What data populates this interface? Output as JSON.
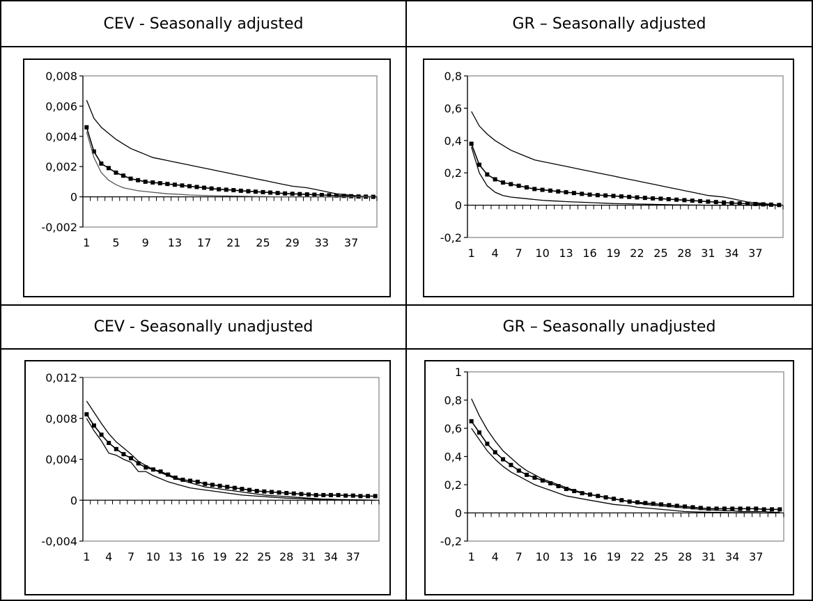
{
  "chart_data": [
    {
      "type": "line",
      "title": "CEV - Seasonally adjusted",
      "ylim": [
        -0.002,
        0.008
      ],
      "yticks": [
        0.008,
        0.006,
        0.004,
        0.002,
        0,
        -0.002
      ],
      "ytick_labels": [
        "0,008",
        "0,006",
        "0,004",
        "0,002",
        "0",
        "-0,002"
      ],
      "xtick_labels": [
        "1",
        "5",
        "9",
        "13",
        "17",
        "21",
        "25",
        "29",
        "33",
        "37"
      ],
      "x": [
        1,
        2,
        3,
        4,
        5,
        6,
        7,
        8,
        9,
        10,
        11,
        12,
        13,
        14,
        15,
        16,
        17,
        18,
        19,
        20,
        21,
        22,
        23,
        24,
        25,
        26,
        27,
        28,
        29,
        30,
        31,
        32,
        33,
        34,
        35,
        36,
        37,
        38,
        39,
        40
      ],
      "series": [
        {
          "marker": "square",
          "values": [
            0.0046,
            0.003,
            0.0022,
            0.0019,
            0.0016,
            0.0014,
            0.0012,
            0.0011,
            0.001,
            0.00095,
            0.0009,
            0.00085,
            0.0008,
            0.00075,
            0.0007,
            0.00065,
            0.0006,
            0.00055,
            0.0005,
            0.00047,
            0.00044,
            0.0004,
            0.00037,
            0.00034,
            0.00031,
            0.00028,
            0.00025,
            0.00022,
            0.0002,
            0.00018,
            0.00016,
            0.00014,
            0.00012,
            0.0001,
            8e-05,
            6e-05,
            4e-05,
            2e-05,
            1e-05,
            0
          ]
        },
        {
          "marker": "none",
          "values": [
            0.0064,
            0.0052,
            0.0046,
            0.0042,
            0.0038,
            0.0035,
            0.0032,
            0.003,
            0.0028,
            0.0026,
            0.0025,
            0.0024,
            0.0023,
            0.0022,
            0.0021,
            0.002,
            0.0019,
            0.0018,
            0.0017,
            0.0016,
            0.0015,
            0.0014,
            0.0013,
            0.0012,
            0.0011,
            0.001,
            0.0009,
            0.0008,
            0.0007,
            0.00065,
            0.0006,
            0.0005,
            0.0004,
            0.0003,
            0.0002,
            0.00015,
            0.0001,
            5e-05,
            2e-05,
            0
          ]
        },
        {
          "marker": "none",
          "values": [
            0.0043,
            0.0026,
            0.0016,
            0.0011,
            0.0008,
            0.0006,
            0.0005,
            0.0004,
            0.00035,
            0.0003,
            0.00025,
            0.0002,
            0.00018,
            0.00015,
            0.00012,
            0.0001,
            9e-05,
            8e-05,
            7e-05,
            6e-05,
            5e-05,
            4e-05,
            3e-05,
            2e-05,
            2e-05,
            1e-05,
            0,
            0,
            0,
            0,
            0,
            0,
            0,
            0,
            0,
            0,
            0,
            0,
            0,
            0
          ]
        }
      ]
    },
    {
      "type": "line",
      "title": "GR – Seasonally adjusted",
      "ylim": [
        -0.2,
        0.8
      ],
      "yticks": [
        0.8,
        0.6,
        0.4,
        0.2,
        0,
        -0.2
      ],
      "ytick_labels": [
        "0,8",
        "0,6",
        "0,4",
        "0,2",
        "0",
        "-0,2"
      ],
      "xtick_labels": [
        "1",
        "4",
        "7",
        "10",
        "13",
        "16",
        "19",
        "22",
        "25",
        "28",
        "31",
        "34",
        "37"
      ],
      "x": [
        1,
        2,
        3,
        4,
        5,
        6,
        7,
        8,
        9,
        10,
        11,
        12,
        13,
        14,
        15,
        16,
        17,
        18,
        19,
        20,
        21,
        22,
        23,
        24,
        25,
        26,
        27,
        28,
        29,
        30,
        31,
        32,
        33,
        34,
        35,
        36,
        37,
        38,
        39,
        40
      ],
      "series": [
        {
          "marker": "square",
          "values": [
            0.38,
            0.25,
            0.19,
            0.16,
            0.14,
            0.13,
            0.12,
            0.11,
            0.1,
            0.095,
            0.09,
            0.085,
            0.08,
            0.075,
            0.07,
            0.065,
            0.062,
            0.06,
            0.057,
            0.054,
            0.051,
            0.048,
            0.045,
            0.042,
            0.04,
            0.037,
            0.034,
            0.031,
            0.028,
            0.025,
            0.022,
            0.019,
            0.016,
            0.013,
            0.011,
            0.009,
            0.007,
            0.005,
            0.003,
            0.001
          ]
        },
        {
          "marker": "none",
          "values": [
            0.58,
            0.49,
            0.44,
            0.4,
            0.37,
            0.34,
            0.32,
            0.3,
            0.28,
            0.27,
            0.26,
            0.25,
            0.24,
            0.23,
            0.22,
            0.21,
            0.2,
            0.19,
            0.18,
            0.17,
            0.16,
            0.15,
            0.14,
            0.13,
            0.12,
            0.11,
            0.1,
            0.09,
            0.08,
            0.07,
            0.06,
            0.055,
            0.05,
            0.04,
            0.03,
            0.02,
            0.015,
            0.01,
            0.005,
            0
          ]
        },
        {
          "marker": "none",
          "values": [
            0.36,
            0.2,
            0.12,
            0.08,
            0.06,
            0.05,
            0.045,
            0.04,
            0.035,
            0.03,
            0.027,
            0.025,
            0.022,
            0.02,
            0.018,
            0.016,
            0.014,
            0.012,
            0.01,
            0.009,
            0.008,
            0.007,
            0.006,
            0.005,
            0.004,
            0.003,
            0.002,
            0.002,
            0.001,
            0.001,
            0,
            0,
            0,
            0,
            0,
            0,
            0,
            0,
            0,
            0
          ]
        }
      ]
    },
    {
      "type": "line",
      "title": "CEV - Seasonally unadjusted",
      "ylim": [
        -0.004,
        0.012
      ],
      "yticks": [
        0.012,
        0.008,
        0.004,
        0,
        -0.004
      ],
      "ytick_labels": [
        "0,012",
        "0,008",
        "0,004",
        "0",
        "-0,004"
      ],
      "xtick_labels": [
        "1",
        "4",
        "7",
        "10",
        "13",
        "16",
        "19",
        "22",
        "25",
        "28",
        "31",
        "34",
        "37"
      ],
      "x": [
        1,
        2,
        3,
        4,
        5,
        6,
        7,
        8,
        9,
        10,
        11,
        12,
        13,
        14,
        15,
        16,
        17,
        18,
        19,
        20,
        21,
        22,
        23,
        24,
        25,
        26,
        27,
        28,
        29,
        30,
        31,
        32,
        33,
        34,
        35,
        36,
        37,
        38,
        39,
        40
      ],
      "series": [
        {
          "marker": "square",
          "values": [
            0.0084,
            0.0073,
            0.0064,
            0.0056,
            0.005,
            0.0045,
            0.0041,
            0.0036,
            0.0032,
            0.003,
            0.0028,
            0.0025,
            0.0022,
            0.002,
            0.0019,
            0.0018,
            0.0016,
            0.0015,
            0.0014,
            0.0013,
            0.0012,
            0.0011,
            0.001,
            0.0009,
            0.00085,
            0.0008,
            0.00075,
            0.0007,
            0.00065,
            0.0006,
            0.00055,
            0.0005,
            0.0005,
            0.0005,
            0.0005,
            0.00045,
            0.00045,
            0.0004,
            0.0004,
            0.0004
          ]
        },
        {
          "marker": "none",
          "values": [
            0.0097,
            0.0086,
            0.0075,
            0.0065,
            0.0057,
            0.0051,
            0.0045,
            0.0038,
            0.0034,
            0.003,
            0.0027,
            0.0024,
            0.0021,
            0.0019,
            0.0017,
            0.0015,
            0.0013,
            0.0012,
            0.0011,
            0.001,
            0.0009,
            0.0008,
            0.0007,
            0.0006,
            0.0005,
            0.00045,
            0.0004,
            0.00035,
            0.0003,
            0.00025,
            0.0002,
            0.00015,
            0.0001,
            0.0001,
            5e-05,
            5e-05,
            0,
            0,
            0,
            0
          ]
        },
        {
          "marker": "none",
          "values": [
            0.008,
            0.0068,
            0.0058,
            0.0046,
            0.0044,
            0.004,
            0.0037,
            0.0028,
            0.0028,
            0.0024,
            0.0021,
            0.0018,
            0.0016,
            0.0014,
            0.0012,
            0.0011,
            0.001,
            0.0009,
            0.0008,
            0.0007,
            0.0006,
            0.0005,
            0.00045,
            0.0004,
            0.00035,
            0.0003,
            0.00025,
            0.0002,
            0.00018,
            0.00015,
            0.00012,
            0.0001,
            0.0001,
            8e-05,
            6e-05,
            5e-05,
            4e-05,
            3e-05,
            2e-05,
            0
          ]
        }
      ]
    },
    {
      "type": "line",
      "title": "GR – Seasonally unadjusted",
      "ylim": [
        -0.2,
        1
      ],
      "yticks": [
        1,
        0.8,
        0.6,
        0.4,
        0.2,
        0,
        -0.2
      ],
      "ytick_labels": [
        "1",
        "0,8",
        "0,6",
        "0,4",
        "0,2",
        "0",
        "-0,2"
      ],
      "xtick_labels": [
        "1",
        "4",
        "7",
        "10",
        "13",
        "16",
        "19",
        "22",
        "25",
        "28",
        "31",
        "34",
        "37"
      ],
      "x": [
        1,
        2,
        3,
        4,
        5,
        6,
        7,
        8,
        9,
        10,
        11,
        12,
        13,
        14,
        15,
        16,
        17,
        18,
        19,
        20,
        21,
        22,
        23,
        24,
        25,
        26,
        27,
        28,
        29,
        30,
        31,
        32,
        33,
        34,
        35,
        36,
        37,
        38,
        39,
        40
      ],
      "series": [
        {
          "marker": "square",
          "values": [
            0.65,
            0.57,
            0.49,
            0.43,
            0.38,
            0.34,
            0.3,
            0.27,
            0.25,
            0.23,
            0.21,
            0.19,
            0.17,
            0.155,
            0.14,
            0.13,
            0.12,
            0.11,
            0.1,
            0.09,
            0.08,
            0.075,
            0.07,
            0.065,
            0.06,
            0.055,
            0.05,
            0.045,
            0.04,
            0.035,
            0.03,
            0.03,
            0.03,
            0.03,
            0.03,
            0.03,
            0.03,
            0.025,
            0.025,
            0.025
          ]
        },
        {
          "marker": "none",
          "values": [
            0.81,
            0.69,
            0.59,
            0.51,
            0.44,
            0.39,
            0.34,
            0.3,
            0.27,
            0.24,
            0.22,
            0.2,
            0.18,
            0.16,
            0.145,
            0.13,
            0.12,
            0.11,
            0.1,
            0.09,
            0.08,
            0.07,
            0.06,
            0.055,
            0.05,
            0.045,
            0.04,
            0.035,
            0.03,
            0.025,
            0.02,
            0.02,
            0.015,
            0.015,
            0.01,
            0.01,
            0.01,
            0.01,
            0.005,
            0.005
          ]
        },
        {
          "marker": "none",
          "values": [
            0.6,
            0.52,
            0.44,
            0.38,
            0.33,
            0.29,
            0.26,
            0.23,
            0.2,
            0.18,
            0.16,
            0.14,
            0.12,
            0.11,
            0.1,
            0.09,
            0.08,
            0.07,
            0.06,
            0.055,
            0.05,
            0.04,
            0.035,
            0.03,
            0.025,
            0.02,
            0.015,
            0.01,
            0.008,
            0.006,
            0.005,
            0.004,
            0.003,
            0.002,
            0.002,
            0.001,
            0.001,
            0,
            0,
            0
          ]
        }
      ]
    }
  ]
}
